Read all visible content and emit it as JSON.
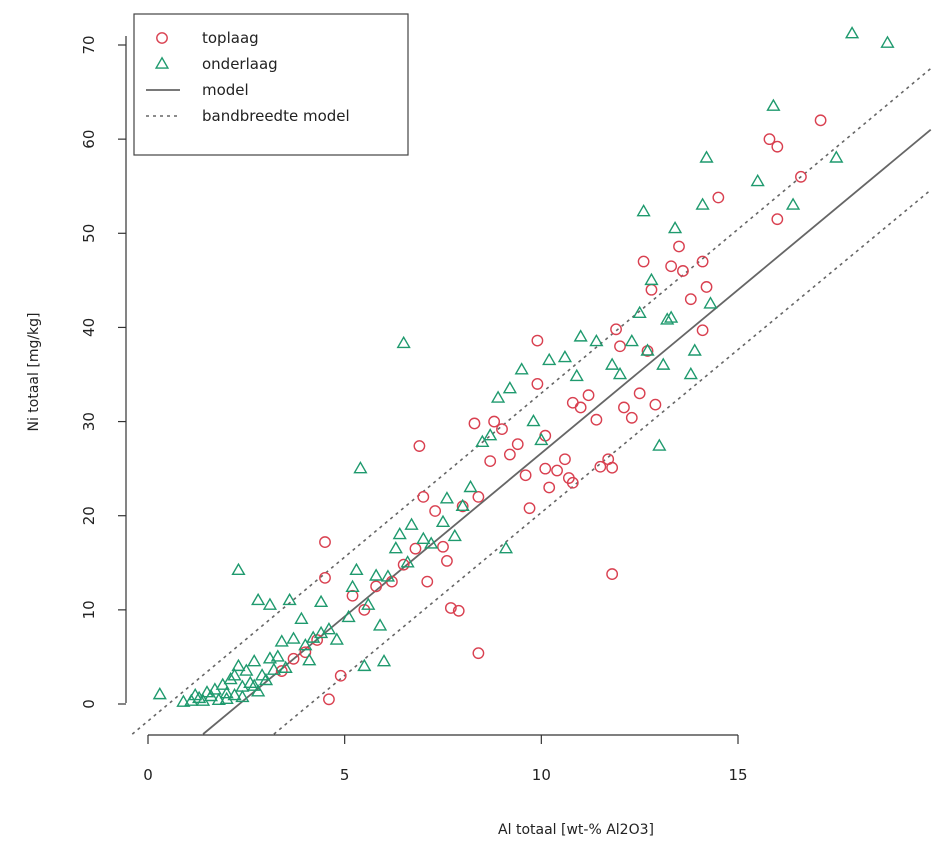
{
  "chart_data": {
    "type": "scatter",
    "xlabel": "Al totaal [wt-% Al2O3]",
    "ylabel": "Ni totaal [mg/kg]",
    "xlim": [
      0,
      19.9
    ],
    "ylim": [
      -3.2,
      72.5
    ],
    "x_ticks": [
      0,
      5,
      10,
      15
    ],
    "y_ticks": [
      0,
      10,
      20,
      30,
      40,
      50,
      60,
      70
    ],
    "legend": {
      "position": "top-left",
      "entries": [
        {
          "label": "toplaag",
          "symbol": "circle",
          "color": "#d94050"
        },
        {
          "label": "onderlaag",
          "symbol": "triangle",
          "color": "#1f9a6e"
        },
        {
          "label": "model",
          "symbol": "line-solid",
          "color": "#666666"
        },
        {
          "label": "bandbreedte model",
          "symbol": "line-dotted",
          "color": "#666666"
        }
      ]
    },
    "series": [
      {
        "name": "toplaag",
        "marker": "circle",
        "color": "#d94050",
        "points": [
          [
            4.5,
            17.2
          ],
          [
            4.5,
            13.4
          ],
          [
            4.6,
            0.5
          ],
          [
            4.9,
            3.0
          ],
          [
            6.9,
            27.4
          ],
          [
            7.0,
            22.0
          ],
          [
            7.3,
            20.5
          ],
          [
            7.6,
            15.2
          ],
          [
            7.7,
            10.2
          ],
          [
            7.9,
            9.9
          ],
          [
            8.4,
            5.4
          ],
          [
            8.3,
            29.8
          ],
          [
            8.8,
            30.0
          ],
          [
            9.0,
            29.2
          ],
          [
            9.6,
            24.3
          ],
          [
            9.7,
            20.8
          ],
          [
            9.9,
            38.6
          ],
          [
            9.9,
            34.0
          ],
          [
            10.1,
            28.5
          ],
          [
            10.1,
            25.0
          ],
          [
            10.2,
            23.0
          ],
          [
            10.4,
            24.8
          ],
          [
            10.6,
            26.0
          ],
          [
            10.7,
            24.0
          ],
          [
            10.8,
            23.5
          ],
          [
            10.8,
            32.0
          ],
          [
            11.0,
            31.5
          ],
          [
            11.2,
            32.8
          ],
          [
            11.4,
            30.2
          ],
          [
            11.5,
            25.2
          ],
          [
            11.7,
            26.0
          ],
          [
            11.8,
            25.1
          ],
          [
            11.8,
            13.8
          ],
          [
            11.9,
            39.8
          ],
          [
            12.0,
            38.0
          ],
          [
            12.1,
            31.5
          ],
          [
            12.3,
            30.4
          ],
          [
            12.5,
            33.0
          ],
          [
            12.7,
            37.5
          ],
          [
            12.9,
            31.8
          ],
          [
            12.6,
            47.0
          ],
          [
            12.8,
            44.0
          ],
          [
            13.3,
            46.5
          ],
          [
            13.6,
            46.0
          ],
          [
            13.8,
            43.0
          ],
          [
            13.5,
            48.6
          ],
          [
            14.1,
            39.7
          ],
          [
            14.1,
            47.0
          ],
          [
            14.2,
            44.3
          ],
          [
            14.5,
            53.8
          ],
          [
            15.8,
            60.0
          ],
          [
            16.0,
            59.2
          ],
          [
            16.0,
            51.5
          ],
          [
            16.6,
            56.0
          ],
          [
            17.1,
            62.0
          ],
          [
            3.7,
            4.8
          ],
          [
            4.3,
            6.8
          ],
          [
            5.2,
            11.5
          ],
          [
            5.5,
            10.0
          ],
          [
            5.8,
            12.5
          ],
          [
            6.2,
            13.0
          ],
          [
            6.5,
            14.8
          ],
          [
            6.8,
            16.5
          ],
          [
            7.1,
            13.0
          ],
          [
            7.5,
            16.7
          ],
          [
            8.0,
            21.0
          ],
          [
            8.4,
            22.0
          ],
          [
            8.7,
            25.8
          ],
          [
            9.2,
            26.5
          ],
          [
            9.4,
            27.6
          ],
          [
            3.4,
            3.5
          ],
          [
            4.0,
            5.5
          ]
        ]
      },
      {
        "name": "onderlaag",
        "marker": "triangle",
        "color": "#1f9a6e",
        "points": [
          [
            0.3,
            1.0
          ],
          [
            0.9,
            0.2
          ],
          [
            1.1,
            0.3
          ],
          [
            1.3,
            0.6
          ],
          [
            1.5,
            1.2
          ],
          [
            1.6,
            0.8
          ],
          [
            1.7,
            1.5
          ],
          [
            1.8,
            0.4
          ],
          [
            1.9,
            2.0
          ],
          [
            2.0,
            1.1
          ],
          [
            2.1,
            2.6
          ],
          [
            2.2,
            3.0
          ],
          [
            2.2,
            0.9
          ],
          [
            2.3,
            4.0
          ],
          [
            2.4,
            1.8
          ],
          [
            2.5,
            3.5
          ],
          [
            2.6,
            2.2
          ],
          [
            2.7,
            4.5
          ],
          [
            2.8,
            1.3
          ],
          [
            2.9,
            3.0
          ],
          [
            3.0,
            2.5
          ],
          [
            3.1,
            4.8
          ],
          [
            3.2,
            3.6
          ],
          [
            3.3,
            5.0
          ],
          [
            2.3,
            14.2
          ],
          [
            2.8,
            11.0
          ],
          [
            3.1,
            10.5
          ],
          [
            3.6,
            11.0
          ],
          [
            3.9,
            9.0
          ],
          [
            4.2,
            7.0
          ],
          [
            4.4,
            7.5
          ],
          [
            4.4,
            10.8
          ],
          [
            4.0,
            6.2
          ],
          [
            3.7,
            6.9
          ],
          [
            3.4,
            6.6
          ],
          [
            4.8,
            6.8
          ],
          [
            5.1,
            9.2
          ],
          [
            5.2,
            12.4
          ],
          [
            5.3,
            14.2
          ],
          [
            5.4,
            25.0
          ],
          [
            5.5,
            4.0
          ],
          [
            5.6,
            10.5
          ],
          [
            5.8,
            13.6
          ],
          [
            5.9,
            8.3
          ],
          [
            6.0,
            4.5
          ],
          [
            6.1,
            13.5
          ],
          [
            6.3,
            16.5
          ],
          [
            6.4,
            18.0
          ],
          [
            6.5,
            38.3
          ],
          [
            6.6,
            15.0
          ],
          [
            6.7,
            19.0
          ],
          [
            7.0,
            17.5
          ],
          [
            7.2,
            17.0
          ],
          [
            7.5,
            19.3
          ],
          [
            7.6,
            21.8
          ],
          [
            7.8,
            17.8
          ],
          [
            8.0,
            21.0
          ],
          [
            8.2,
            23.0
          ],
          [
            8.5,
            27.8
          ],
          [
            8.7,
            28.5
          ],
          [
            8.9,
            32.5
          ],
          [
            9.1,
            16.5
          ],
          [
            9.2,
            33.5
          ],
          [
            9.5,
            35.5
          ],
          [
            9.8,
            30.0
          ],
          [
            10.0,
            28.0
          ],
          [
            10.2,
            36.5
          ],
          [
            10.6,
            36.8
          ],
          [
            10.9,
            34.8
          ],
          [
            11.0,
            39.0
          ],
          [
            11.4,
            38.5
          ],
          [
            11.8,
            36.0
          ],
          [
            12.0,
            35.0
          ],
          [
            12.3,
            38.5
          ],
          [
            12.5,
            41.5
          ],
          [
            12.7,
            37.5
          ],
          [
            12.8,
            45.0
          ],
          [
            12.6,
            52.3
          ],
          [
            13.0,
            27.4
          ],
          [
            13.1,
            36.0
          ],
          [
            13.2,
            40.8
          ],
          [
            13.3,
            41.0
          ],
          [
            13.4,
            50.5
          ],
          [
            13.8,
            35.0
          ],
          [
            13.9,
            37.5
          ],
          [
            14.1,
            53.0
          ],
          [
            14.2,
            58.0
          ],
          [
            14.3,
            42.5
          ],
          [
            15.5,
            55.5
          ],
          [
            15.9,
            63.5
          ],
          [
            16.4,
            53.0
          ],
          [
            17.5,
            58.0
          ],
          [
            17.9,
            71.2
          ],
          [
            18.8,
            70.2
          ],
          [
            1.2,
            0.9
          ],
          [
            1.4,
            0.3
          ],
          [
            2.0,
            0.5
          ],
          [
            2.4,
            0.7
          ],
          [
            2.7,
            1.9
          ],
          [
            3.5,
            3.8
          ],
          [
            4.1,
            4.6
          ],
          [
            4.6,
            7.9
          ]
        ]
      }
    ],
    "model_lines": [
      {
        "name": "model",
        "style": "solid",
        "color": "#666666",
        "from": [
          1.4,
          -3.2
        ],
        "to": [
          19.9,
          61.0
        ]
      },
      {
        "name": "bandbreedte model",
        "style": "dotted",
        "color": "#666666",
        "from": [
          -0.4,
          -3.2
        ],
        "to": [
          19.9,
          67.5
        ]
      },
      {
        "name": "bandbreedte model",
        "style": "dotted",
        "color": "#666666",
        "from": [
          3.2,
          -3.2
        ],
        "to": [
          19.9,
          54.6
        ]
      }
    ]
  }
}
